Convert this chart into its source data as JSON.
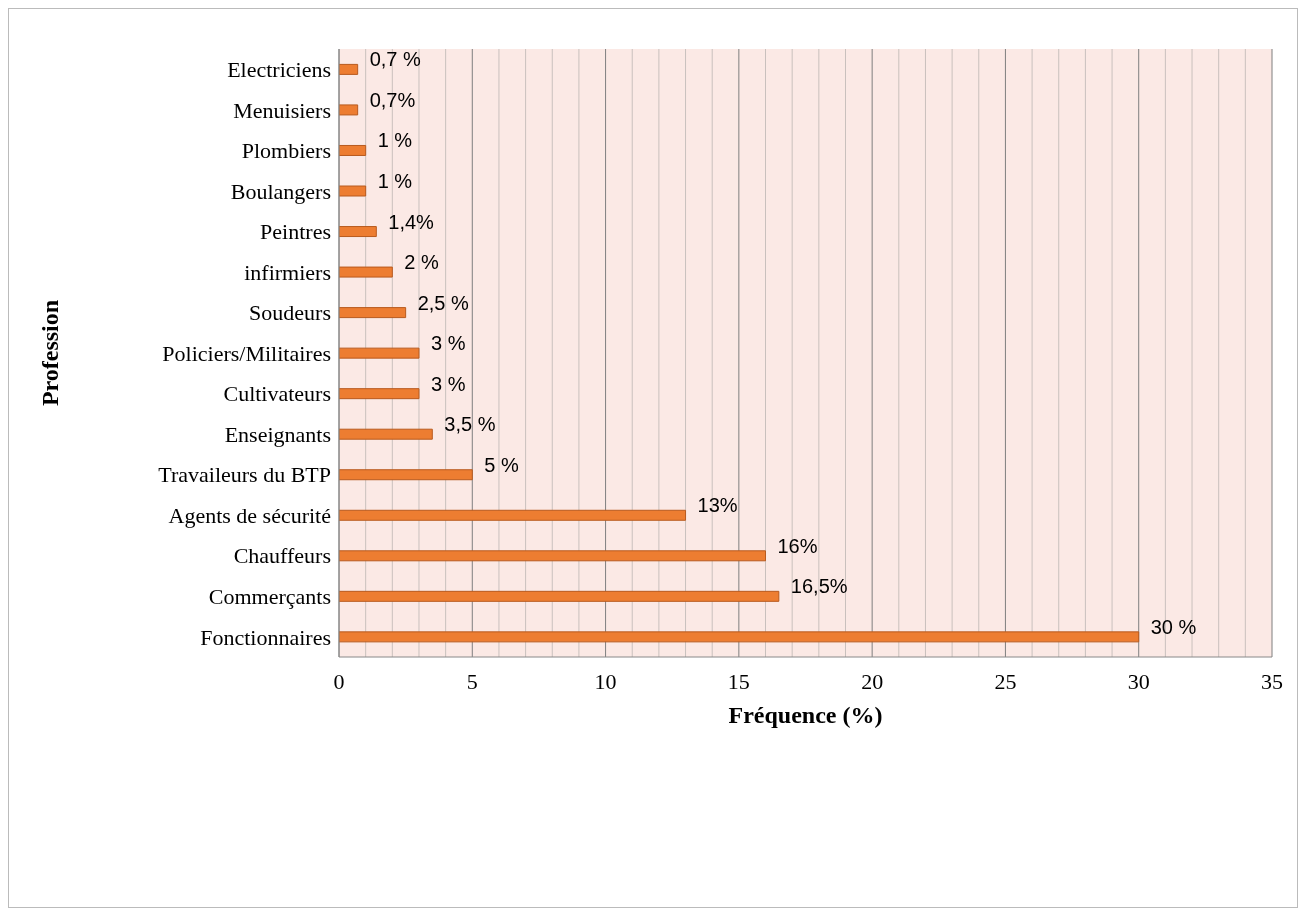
{
  "chart_data": {
    "type": "bar",
    "orientation": "horizontal",
    "xlabel": "Fréquence (%)",
    "ylabel": "Profession",
    "categories": [
      "Electriciens",
      "Menuisiers",
      "Plombiers",
      "Boulangers",
      "Peintres",
      "infirmiers",
      "Soudeurs",
      "Policiers/Militaires",
      "Cultivateurs",
      "Enseignants",
      "Travaileurs du BTP",
      "Agents de sécurité",
      "Chauffeurs",
      "Commerçants",
      "Fonctionnaires"
    ],
    "values": [
      0.7,
      0.7,
      1,
      1,
      1.4,
      2,
      2.5,
      3,
      3,
      3.5,
      5,
      13,
      16,
      16.5,
      30
    ],
    "value_labels": [
      "0,7 %",
      "0,7%",
      "1 %",
      "1 %",
      "1,4%",
      "2 %",
      "2,5 %",
      "3 %",
      "3 %",
      "3,5 %",
      "5 %",
      "13%",
      "16%",
      "16,5%",
      "30 %"
    ],
    "color": "#ed7d31",
    "xlim": [
      0,
      35
    ],
    "xticks": [
      0,
      {
        "value": 1,
        "label": null
      },
      {
        "value": 2,
        "label": null
      },
      {
        "value": 3,
        "label": null
      },
      {
        "value": 4,
        "label": null
      },
      5,
      {
        "value": 6,
        "label": null
      },
      {
        "value": 7,
        "label": null
      },
      {
        "value": 8,
        "label": null
      },
      {
        "value": 9,
        "label": null
      },
      10,
      {
        "value": 11,
        "label": null
      },
      {
        "value": 12,
        "label": null
      },
      {
        "value": 13,
        "label": null
      },
      {
        "value": 14,
        "label": null
      },
      15,
      {
        "value": 16,
        "label": null
      },
      {
        "value": 17,
        "label": null
      },
      {
        "value": 18,
        "label": null
      },
      {
        "value": 19,
        "label": null
      },
      20,
      {
        "value": 21,
        "label": null
      },
      {
        "value": 22,
        "label": null
      },
      {
        "value": 23,
        "label": null
      },
      {
        "value": 24,
        "label": null
      },
      25,
      {
        "value": 26,
        "label": null
      },
      {
        "value": 27,
        "label": null
      },
      {
        "value": 28,
        "label": null
      },
      {
        "value": 29,
        "label": null
      },
      30,
      {
        "value": 31,
        "label": null
      },
      {
        "value": 32,
        "label": null
      },
      {
        "value": 33,
        "label": null
      },
      {
        "value": 34,
        "label": null
      },
      35
    ],
    "grid": "x",
    "legend": false
  }
}
